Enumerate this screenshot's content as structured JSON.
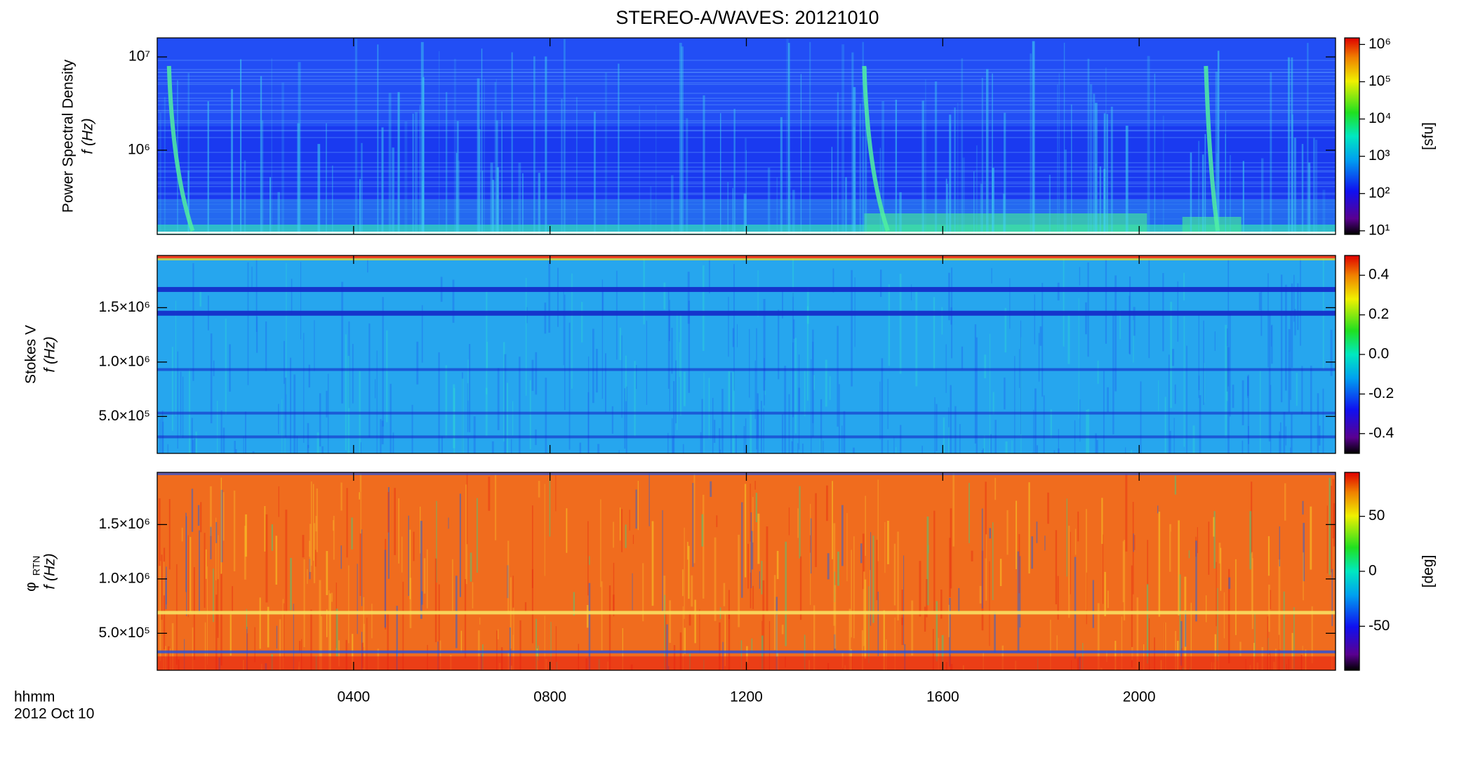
{
  "chart_data": {
    "type": "heatmap",
    "title": "STEREO-A/WAVES: 20121010",
    "x_label": "hhmm",
    "x_sublabel": "2012 Oct 10",
    "xlim": [
      0,
      24
    ],
    "xticks": [
      {
        "value": 4,
        "label": "0400"
      },
      {
        "value": 8,
        "label": "0800"
      },
      {
        "value": 12,
        "label": "1200"
      },
      {
        "value": 16,
        "label": "1600"
      },
      {
        "value": 20,
        "label": "2000"
      }
    ],
    "panels": [
      {
        "ylabel": "Power Spectral Density",
        "ylabel2": "f (Hz)",
        "ylog": true,
        "ylim": [
          125000,
          16000000
        ],
        "yticks": [
          {
            "value": 10000000,
            "label": "10⁷"
          },
          {
            "value": 1000000,
            "label": "10⁶"
          }
        ],
        "zlog": true,
        "zlim": [
          8,
          1500000
        ],
        "zlabel": "[sfu]",
        "zticks": [
          {
            "value": 10,
            "label": "10¹"
          },
          {
            "value": 100,
            "label": "10²"
          },
          {
            "value": 1000,
            "label": "10³"
          },
          {
            "value": 10000,
            "label": "10⁴"
          },
          {
            "value": 100000,
            "label": "10⁵"
          },
          {
            "value": 1000000,
            "label": "10⁶"
          }
        ]
      },
      {
        "ylabel": "Stokes V",
        "ylabel2": "f (Hz)",
        "ylog": false,
        "ylim": [
          160000,
          1980000
        ],
        "yticks": [
          {
            "value": 1500000,
            "label": "1.5×10⁶"
          },
          {
            "value": 1000000,
            "label": "1.0×10⁶"
          },
          {
            "value": 500000,
            "label": "5.0×10⁵"
          }
        ],
        "zlog": false,
        "zlim": [
          -0.5,
          0.5
        ],
        "zlabel": "",
        "zticks": [
          0.4,
          0.2,
          {
            "value": 0,
            "label": "0.0"
          },
          -0.2,
          -0.4
        ]
      },
      {
        "ylabel": "φ",
        "ylabel_sub": "RTN",
        "ylabel2": "f (Hz)",
        "ylog": false,
        "ylim": [
          160000,
          1980000
        ],
        "yticks": [
          {
            "value": 1500000,
            "label": "1.5×10⁶"
          },
          {
            "value": 1000000,
            "label": "1.0×10⁶"
          },
          {
            "value": 500000,
            "label": "5.0×10⁵"
          }
        ],
        "zlog": false,
        "zlim": [
          -90,
          90
        ],
        "zlabel": "[deg]",
        "zticks": [
          50,
          0,
          -50
        ]
      }
    ]
  }
}
